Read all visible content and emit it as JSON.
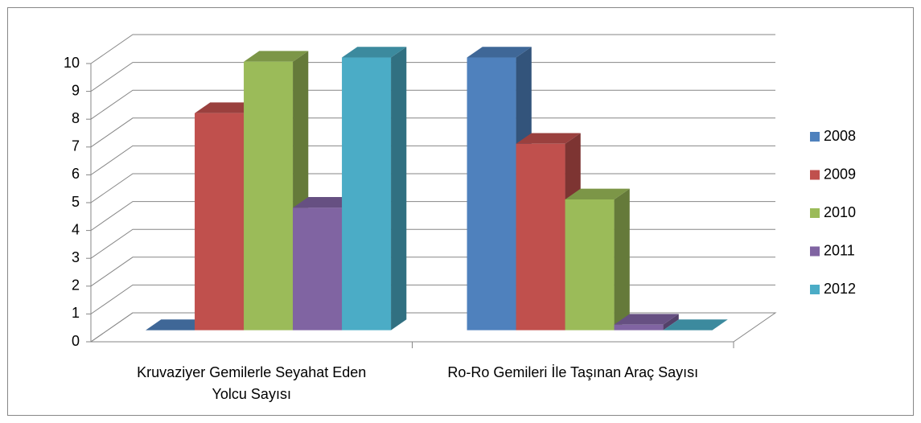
{
  "chart_data": {
    "type": "bar3d",
    "categories": [
      "Kruvaziyer Gemilerle Seyahat Eden Yolcu Sayısı",
      "Ro-Ro Gemileri İle Taşınan Araç Sayısı"
    ],
    "series": [
      {
        "name": "2008",
        "color": "#4f81bd",
        "values": [
          0,
          9.8
        ]
      },
      {
        "name": "2009",
        "color": "#c0504d",
        "values": [
          7.8,
          6.7
        ]
      },
      {
        "name": "2010",
        "color": "#9bbb59",
        "values": [
          9.65,
          4.7
        ]
      },
      {
        "name": "2011",
        "color": "#8064a2",
        "values": [
          4.4,
          0.2
        ]
      },
      {
        "name": "2012",
        "color": "#4bacc6",
        "values": [
          9.8,
          0
        ]
      }
    ],
    "ylim": [
      0,
      10
    ],
    "yticks": [
      0,
      1,
      2,
      3,
      4,
      5,
      6,
      7,
      8,
      9,
      10
    ],
    "grid": true,
    "legend": "right"
  }
}
